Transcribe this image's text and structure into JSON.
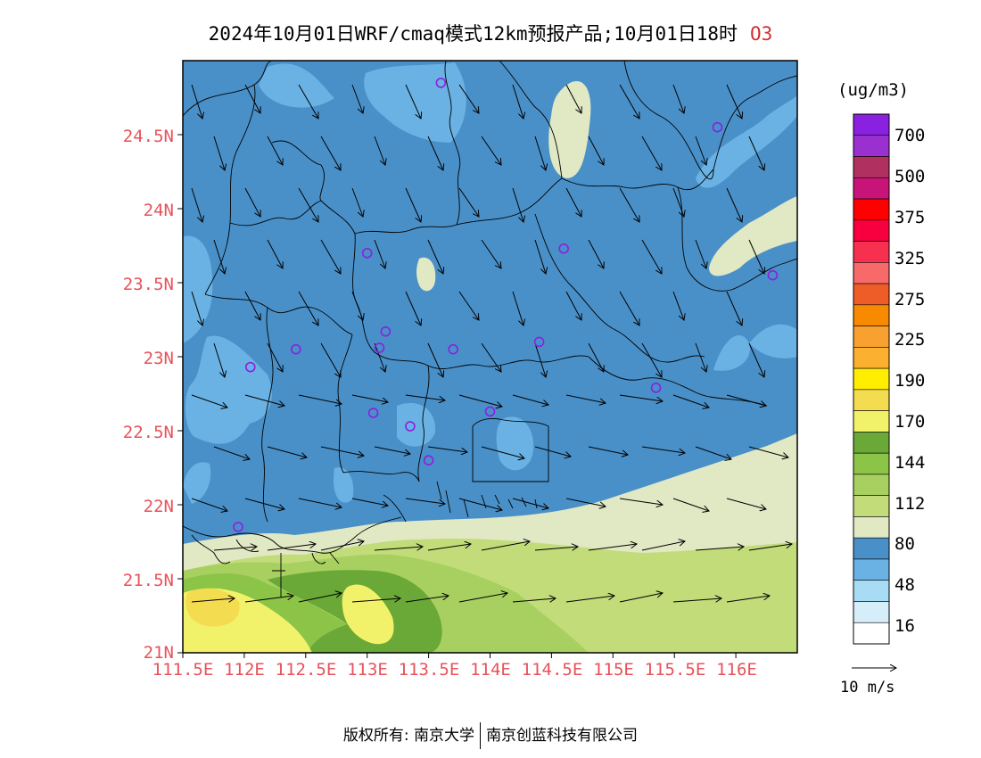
{
  "title": {
    "text": "2024年10月01日WRF/cmaq模式12km预报产品;10月01日18时",
    "species": "O3"
  },
  "axes": {
    "lat_labels": [
      "24.5N",
      "24N",
      "23.5N",
      "23N",
      "22.5N",
      "22N",
      "21.5N",
      "21N"
    ],
    "lon_labels": [
      "111.5E",
      "112E",
      "112.5E",
      "113E",
      "113.5E",
      "114E",
      "114.5E",
      "115E",
      "115.5E",
      "116E"
    ],
    "lat_range": [
      21.0,
      25.0
    ],
    "lon_range": [
      111.5,
      116.5
    ]
  },
  "legend": {
    "units": "(ug/m3)",
    "colors": [
      "#ffffff",
      "#d6eefa",
      "#a8dcf4",
      "#6ab2e4",
      "#4a90c8",
      "#e0e8c4",
      "#c2dc7a",
      "#a8d060",
      "#8cc448",
      "#6aa838",
      "#f2f26a",
      "#f4dc50",
      "#ffee00",
      "#fcb030",
      "#f8a030",
      "#f88a00",
      "#ee5c28",
      "#f86a6a",
      "#f83050",
      "#f80040",
      "#ff0000",
      "#c81478",
      "#b03060",
      "#9a30d0",
      "#8a20e0"
    ],
    "labels": [
      "16",
      "48",
      "80",
      "112",
      "144",
      "170",
      "190",
      "225",
      "275",
      "325",
      "375",
      "500",
      "700"
    ]
  },
  "stations": [
    {
      "lon": 113.6,
      "lat": 24.85
    },
    {
      "lon": 115.85,
      "lat": 24.55
    },
    {
      "lon": 114.6,
      "lat": 23.73
    },
    {
      "lon": 113.0,
      "lat": 23.7
    },
    {
      "lon": 116.3,
      "lat": 23.55
    },
    {
      "lon": 113.15,
      "lat": 23.17
    },
    {
      "lon": 113.1,
      "lat": 23.06
    },
    {
      "lon": 112.42,
      "lat": 23.05
    },
    {
      "lon": 113.7,
      "lat": 23.05
    },
    {
      "lon": 114.4,
      "lat": 23.1
    },
    {
      "lon": 112.05,
      "lat": 22.93
    },
    {
      "lon": 115.35,
      "lat": 22.79
    },
    {
      "lon": 113.05,
      "lat": 22.62
    },
    {
      "lon": 114.0,
      "lat": 22.63
    },
    {
      "lon": 113.35,
      "lat": 22.53
    },
    {
      "lon": 113.5,
      "lat": 22.3
    },
    {
      "lon": 111.95,
      "lat": 21.85
    }
  ],
  "wind_scale": {
    "label": "10 m/s"
  },
  "footer": {
    "left": "版权所有: 南京大学",
    "right": "南京创蓝科技有限公司"
  }
}
